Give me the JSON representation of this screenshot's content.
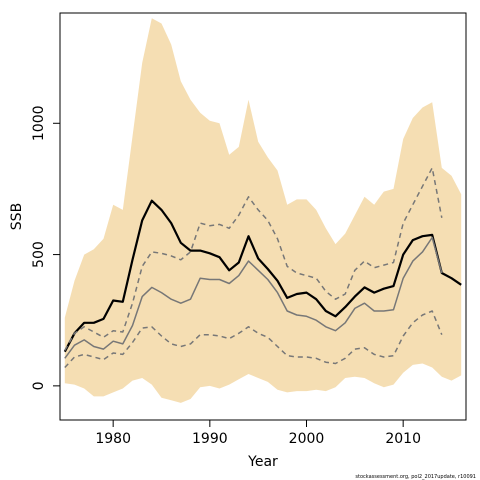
{
  "chart_data": {
    "type": "line",
    "xlabel": "Year",
    "ylabel": "SSB",
    "xlim": [
      1974.5,
      2016.5
    ],
    "ylim": [
      -130,
      1420
    ],
    "x_ticks": [
      1980,
      1990,
      2000,
      2010
    ],
    "y_ticks": [
      0,
      500,
      1000
    ],
    "grid": false,
    "legend": "none",
    "footnote": "stockassessment.org, pol2_2017update, r10091",
    "colors": {
      "band": "#f5deb3",
      "main": "#000000",
      "secondary": "#777777"
    },
    "series": [
      {
        "style": "band",
        "x": [
          1975,
          1976,
          1977,
          1978,
          1979,
          1980,
          1981,
          1982,
          1983,
          1984,
          1985,
          1986,
          1987,
          1988,
          1989,
          1990,
          1991,
          1992,
          1993,
          1994,
          1995,
          1996,
          1997,
          1998,
          1999,
          2000,
          2001,
          2002,
          2003,
          2004,
          2005,
          2006,
          2007,
          2008,
          2009,
          2010,
          2011,
          2012,
          2013,
          2014,
          2015,
          2016
        ],
        "upper": [
          260,
          400,
          500,
          520,
          560,
          690,
          670,
          950,
          1230,
          1400,
          1380,
          1300,
          1160,
          1090,
          1040,
          1010,
          1000,
          880,
          910,
          1090,
          930,
          870,
          820,
          690,
          710,
          710,
          670,
          600,
          540,
          580,
          650,
          720,
          690,
          740,
          750,
          940,
          1020,
          1060,
          1080,
          830,
          800,
          730
        ],
        "lower": [
          10,
          5,
          -10,
          -40,
          -40,
          -25,
          -10,
          20,
          30,
          5,
          -45,
          -55,
          -65,
          -50,
          -5,
          0,
          -10,
          5,
          25,
          45,
          30,
          15,
          -15,
          -25,
          -20,
          -20,
          -15,
          -20,
          -5,
          30,
          35,
          30,
          10,
          -5,
          5,
          50,
          80,
          85,
          70,
          35,
          20,
          40
        ]
      },
      {
        "style": "solid-black",
        "x": [
          1975,
          1976,
          1977,
          1978,
          1979,
          1980,
          1981,
          1982,
          1983,
          1984,
          1985,
          1986,
          1987,
          1988,
          1989,
          1990,
          1991,
          1992,
          1993,
          1994,
          1995,
          1996,
          1997,
          1998,
          1999,
          2000,
          2001,
          2002,
          2003,
          2004,
          2005,
          2006,
          2007,
          2008,
          2009,
          2010,
          2011,
          2012,
          2013,
          2014,
          2015,
          2016
        ],
        "values": [
          130,
          200,
          240,
          240,
          255,
          325,
          320,
          480,
          630,
          705,
          670,
          620,
          545,
          515,
          515,
          505,
          490,
          440,
          470,
          570,
          485,
          445,
          400,
          335,
          350,
          355,
          330,
          285,
          265,
          300,
          340,
          375,
          355,
          370,
          380,
          500,
          555,
          570,
          575,
          430,
          410,
          385
        ]
      },
      {
        "style": "solid-gray",
        "x": [
          1975,
          1976,
          1977,
          1978,
          1979,
          1980,
          1981,
          1982,
          1983,
          1984,
          1985,
          1986,
          1987,
          1988,
          1989,
          1990,
          1991,
          1992,
          1993,
          1994,
          1995,
          1996,
          1997,
          1998,
          1999,
          2000,
          2001,
          2002,
          2003,
          2004,
          2005,
          2006,
          2007,
          2008,
          2009,
          2010,
          2011,
          2012,
          2013,
          2014
        ],
        "values": [
          105,
          155,
          175,
          150,
          140,
          170,
          160,
          230,
          340,
          375,
          355,
          330,
          315,
          330,
          410,
          405,
          405,
          390,
          420,
          475,
          440,
          405,
          355,
          285,
          270,
          265,
          250,
          225,
          210,
          240,
          295,
          315,
          285,
          285,
          290,
          410,
          475,
          510,
          565,
          430
        ]
      },
      {
        "style": "dashed-gray",
        "x": [
          1975,
          1976,
          1977,
          1978,
          1979,
          1980,
          1981,
          1982,
          1983,
          1984,
          1985,
          1986,
          1987,
          1988,
          1989,
          1990,
          1991,
          1992,
          1993,
          1994,
          1995,
          1996,
          1997,
          1998,
          1999,
          2000,
          2001,
          2002,
          2003,
          2004,
          2005,
          2006,
          2007,
          2008,
          2009,
          2010,
          2011,
          2012,
          2013,
          2014
        ],
        "values": [
          135,
          200,
          225,
          205,
          185,
          210,
          205,
          315,
          455,
          510,
          505,
          495,
          480,
          510,
          620,
          610,
          615,
          600,
          650,
          720,
          670,
          630,
          560,
          455,
          430,
          420,
          410,
          360,
          330,
          350,
          440,
          475,
          450,
          460,
          470,
          620,
          690,
          760,
          830,
          640
        ]
      },
      {
        "style": "dashed-gray",
        "x": [
          1975,
          1976,
          1977,
          1978,
          1979,
          1980,
          1981,
          1982,
          1983,
          1984,
          1985,
          1986,
          1987,
          1988,
          1989,
          1990,
          1991,
          1992,
          1993,
          1994,
          1995,
          1996,
          1997,
          1998,
          1999,
          2000,
          2001,
          2002,
          2003,
          2004,
          2005,
          2006,
          2007,
          2008,
          2009,
          2010,
          2011,
          2012,
          2013,
          2014
        ],
        "values": [
          70,
          110,
          120,
          110,
          100,
          125,
          120,
          165,
          220,
          225,
          190,
          160,
          150,
          160,
          195,
          195,
          190,
          180,
          200,
          225,
          200,
          185,
          150,
          115,
          110,
          110,
          105,
          90,
          85,
          105,
          140,
          145,
          120,
          110,
          115,
          190,
          240,
          270,
          285,
          195
        ]
      }
    ]
  }
}
